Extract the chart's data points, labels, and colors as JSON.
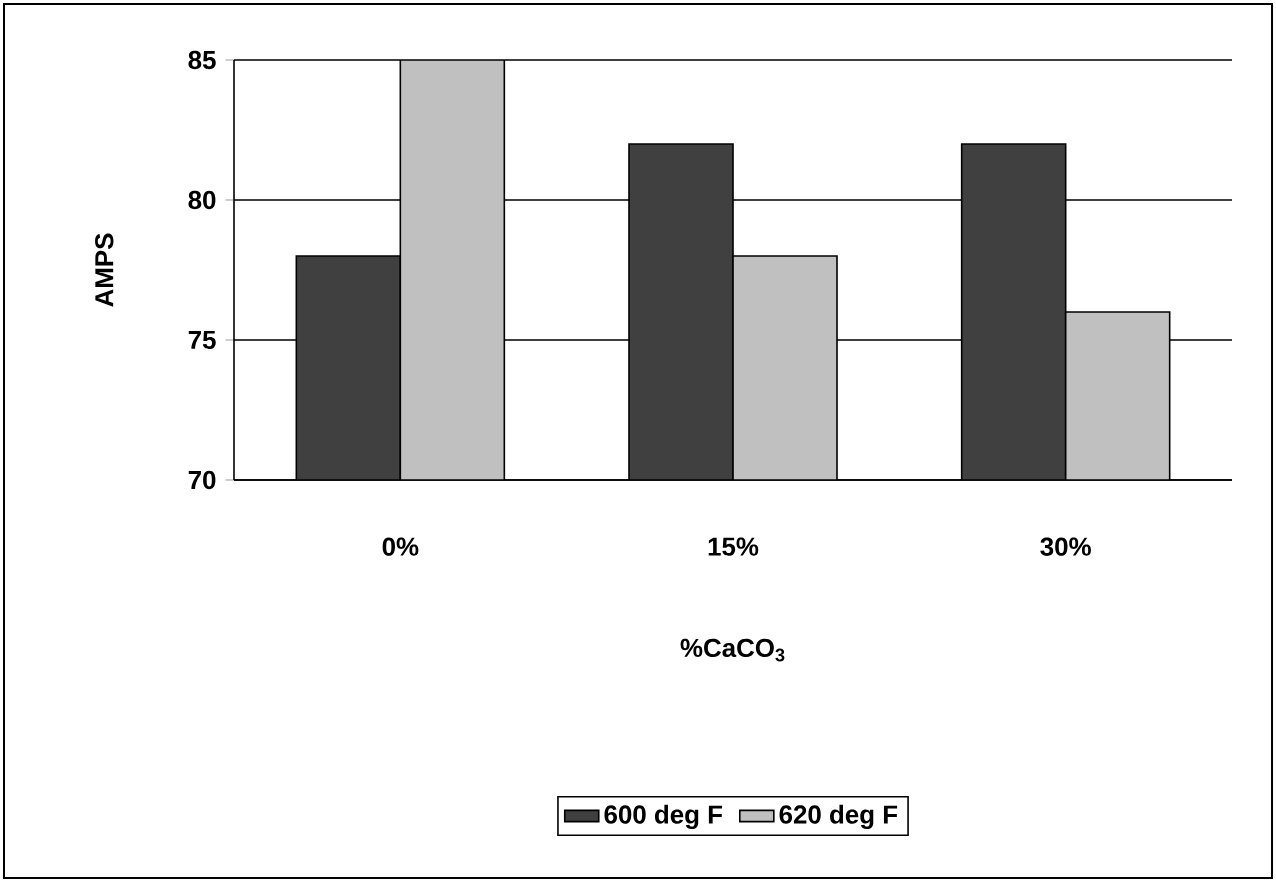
{
  "chart_data": {
    "type": "bar",
    "xlabel": "%CaCO$_{3}$",
    "ylabel": "AMPS",
    "categories": [
      "0%",
      "15%",
      "30%"
    ],
    "series": [
      {
        "name": "600 deg F",
        "color": "#404040",
        "values": [
          78,
          82,
          82
        ]
      },
      {
        "name": "620 deg F",
        "color": "#c0c0c0",
        "values": [
          85,
          78,
          76
        ]
      }
    ],
    "ylim": [
      70,
      85
    ],
    "yticks": [
      70,
      75,
      80,
      85
    ],
    "grid": "y",
    "legend": "bottom"
  }
}
